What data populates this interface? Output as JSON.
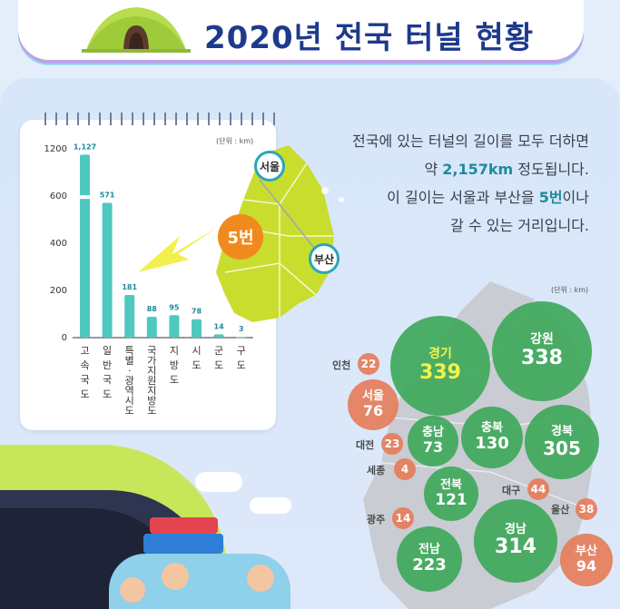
{
  "header": {
    "title": "2020년 전국 터널 현황"
  },
  "chart_data": {
    "type": "bar",
    "unit": "(단위 : km)",
    "categories": [
      "고속국도",
      "일반국도",
      "특별·광역시도",
      "국가지원지방도",
      "지방도",
      "시도",
      "군도",
      "구도"
    ],
    "value_labels": [
      "1,127",
      "571",
      "181",
      "88",
      "95",
      "78",
      "14",
      "3"
    ],
    "values": [
      1127,
      571,
      181,
      88,
      95,
      78,
      14,
      3
    ],
    "y_ticks": [
      "0",
      "200",
      "400",
      "600",
      "1200"
    ],
    "color": "#4fc8c0"
  },
  "description": {
    "line1": "전국에 있는 터널의 길이를 모두 더하면",
    "line2_pre": "약 ",
    "line2_hl": "2,157km",
    "line2_post": " 정도됩니다.",
    "line3_pre": "이 길이는 서울과 부산을 ",
    "line3_hl": "5번",
    "line3_post": "이나",
    "line4": "갈 수 있는 거리입니다."
  },
  "map_top": {
    "badge": "5번",
    "seoul": "서울",
    "busan": "부산"
  },
  "map_bottom": {
    "unit": "(단위 : km)",
    "regions": [
      {
        "name": "경기",
        "value": "339"
      },
      {
        "name": "강원",
        "value": "338"
      },
      {
        "name": "서울",
        "value": "76"
      },
      {
        "name": "충남",
        "value": "73"
      },
      {
        "name": "충북",
        "value": "130"
      },
      {
        "name": "경북",
        "value": "305"
      },
      {
        "name": "전북",
        "value": "121"
      },
      {
        "name": "경남",
        "value": "314"
      },
      {
        "name": "전남",
        "value": "223"
      },
      {
        "name": "부산",
        "value": "94"
      }
    ],
    "small": [
      {
        "name": "인천",
        "value": "22"
      },
      {
        "name": "대전",
        "value": "23"
      },
      {
        "name": "세종",
        "value": "4"
      },
      {
        "name": "대구",
        "value": "44"
      },
      {
        "name": "울산",
        "value": "38"
      },
      {
        "name": "광주",
        "value": "14"
      }
    ]
  },
  "colors": {
    "title": "#1d3a8c",
    "bar": "#4fc8c0",
    "green": "#3fa85b",
    "orange": "#e57d5a",
    "highlight": "#1e8a9c"
  }
}
